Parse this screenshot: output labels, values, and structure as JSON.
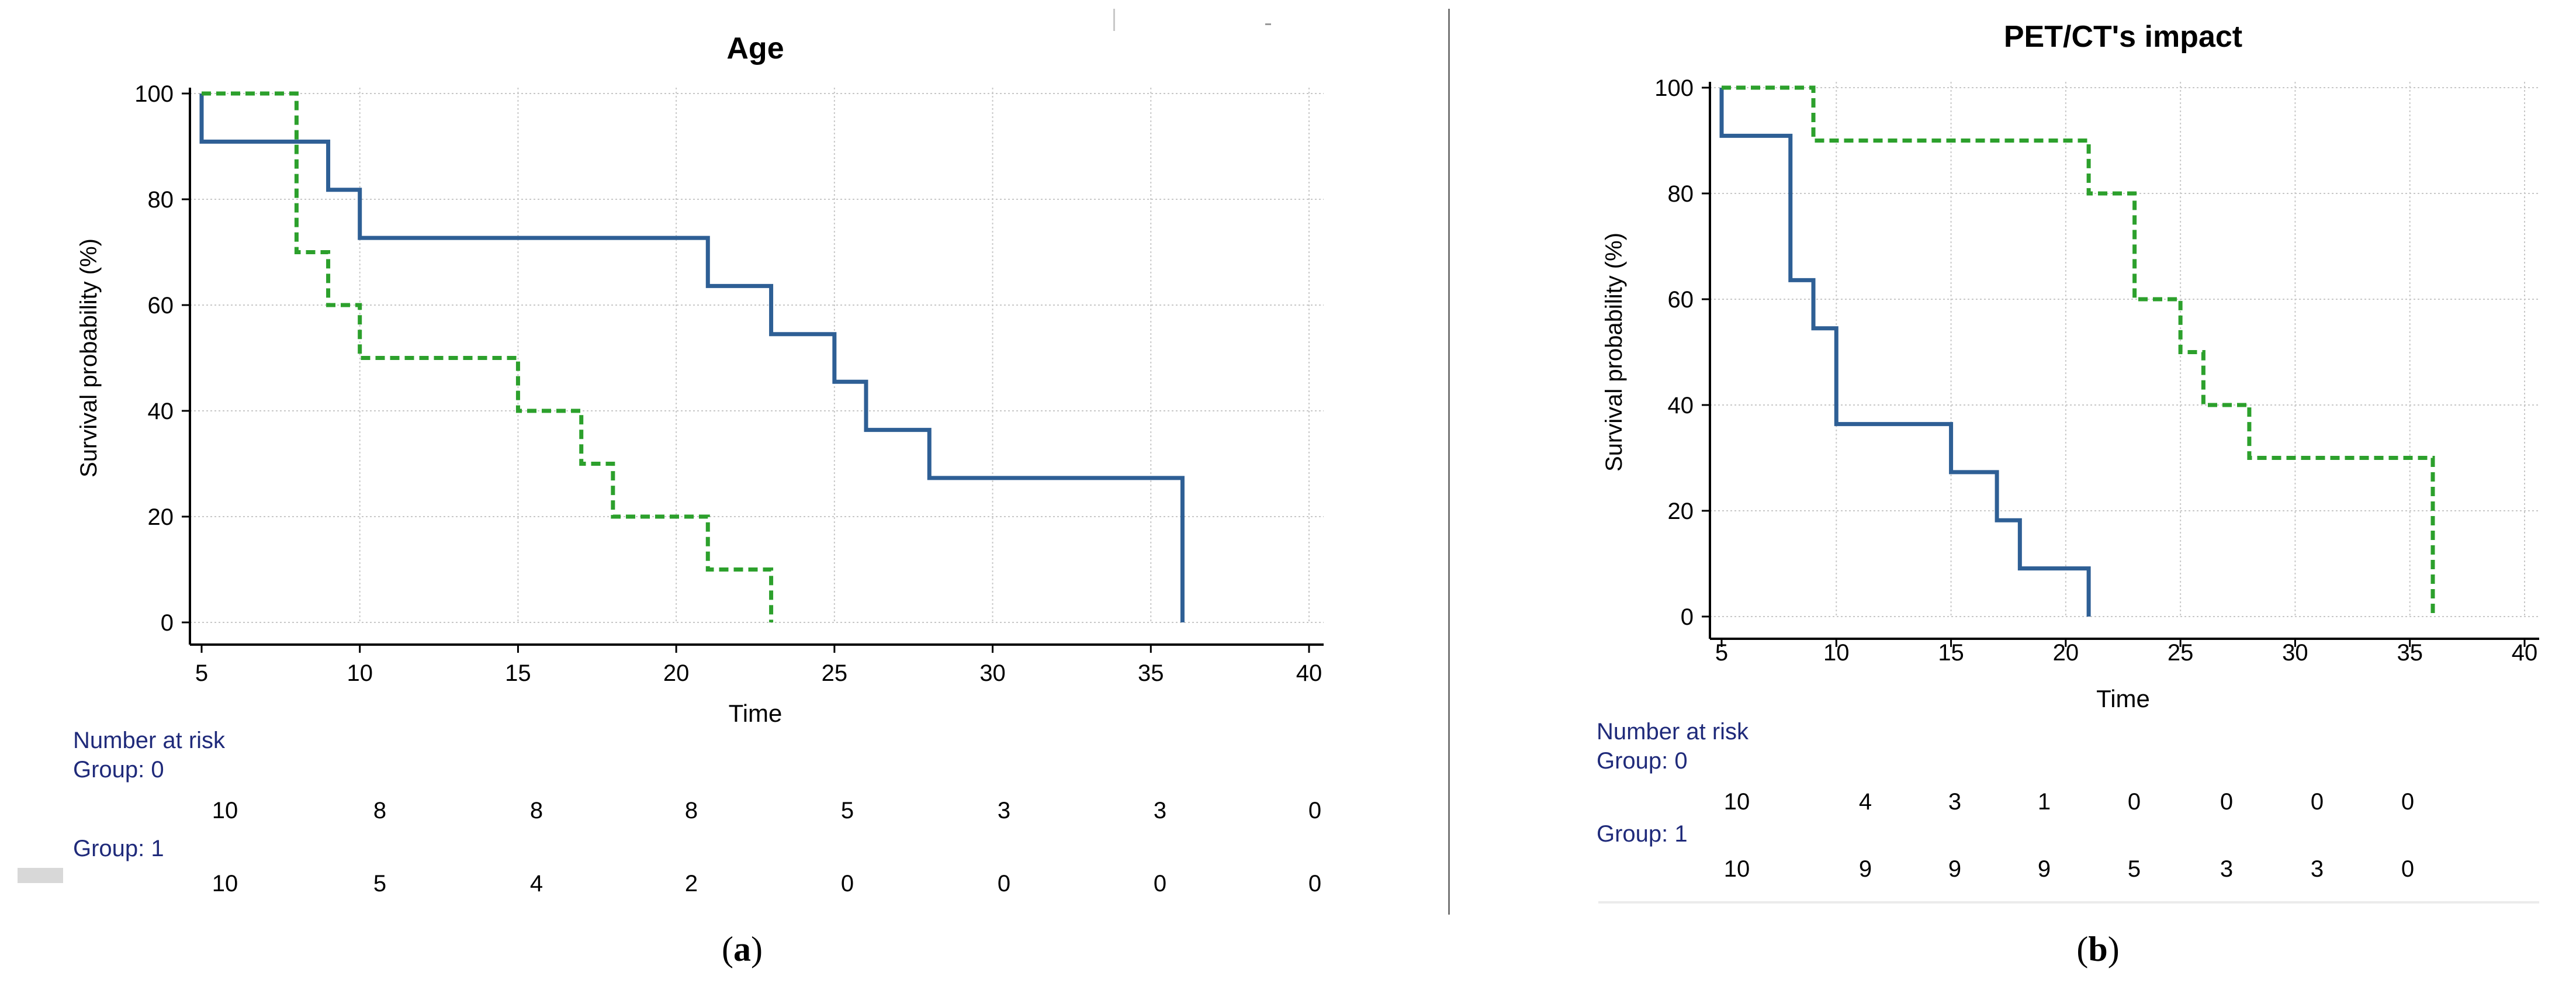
{
  "chart_data": [
    {
      "type": "kaplan-meier",
      "panel": "a",
      "title": "Age",
      "xlabel": "Time",
      "ylabel": "Survival probability (%)",
      "xlim": [
        5,
        40
      ],
      "ylim": [
        0,
        100
      ],
      "x_ticks": [
        5,
        10,
        15,
        20,
        25,
        30,
        35,
        40
      ],
      "y_ticks": [
        0,
        20,
        40,
        60,
        80,
        100
      ],
      "grid": true,
      "series": [
        {
          "name": "Group: 0",
          "color": "#2e5f95",
          "style": "solid",
          "steps": [
            [
              5,
              100
            ],
            [
              5,
              90.9
            ],
            [
              9,
              81.8
            ],
            [
              10,
              72.7
            ],
            [
              21,
              63.6
            ],
            [
              23,
              54.5
            ],
            [
              25,
              45.5
            ],
            [
              26,
              36.4
            ],
            [
              28,
              27.3
            ],
            [
              36,
              0
            ]
          ],
          "end_x": 36
        },
        {
          "name": "Group: 1",
          "color": "#2ca02c",
          "style": "dashed",
          "steps": [
            [
              5,
              100
            ],
            [
              8,
              70
            ],
            [
              9,
              60
            ],
            [
              10,
              50
            ],
            [
              15,
              40
            ],
            [
              17,
              30
            ],
            [
              18,
              20
            ],
            [
              21,
              10
            ],
            [
              23,
              0
            ]
          ],
          "end_x": 23
        }
      ],
      "risk_table": {
        "title": "Number at risk",
        "groups": [
          {
            "label": "Group: 0",
            "values": [
              "10",
              "8",
              "8",
              "8",
              "5",
              "3",
              "3",
              "0"
            ]
          },
          {
            "label": "Group: 1",
            "values": [
              "10",
              "5",
              "4",
              "2",
              "0",
              "0",
              "0",
              "0"
            ]
          }
        ]
      },
      "caption_open": "(",
      "caption_letter": "a",
      "caption_close": ")"
    },
    {
      "type": "kaplan-meier",
      "panel": "b",
      "title": "PET/CT's impact",
      "xlabel": "Time",
      "ylabel": "Survival probability (%)",
      "xlim": [
        5,
        40
      ],
      "ylim": [
        0,
        100
      ],
      "x_ticks": [
        5,
        10,
        15,
        20,
        25,
        30,
        35,
        40
      ],
      "y_ticks": [
        0,
        20,
        40,
        60,
        80,
        100
      ],
      "grid": true,
      "series": [
        {
          "name": "Group: 0",
          "color": "#2e5f95",
          "style": "solid",
          "steps": [
            [
              5,
              100
            ],
            [
              5,
              90.9
            ],
            [
              8,
              63.6
            ],
            [
              9,
              54.5
            ],
            [
              10,
              36.4
            ],
            [
              15,
              27.3
            ],
            [
              17,
              18.2
            ],
            [
              18,
              9.1
            ],
            [
              21,
              0
            ]
          ],
          "end_x": 21
        },
        {
          "name": "Group: 1",
          "color": "#2ca02c",
          "style": "dashed",
          "steps": [
            [
              5,
              100
            ],
            [
              9,
              90
            ],
            [
              21,
              80
            ],
            [
              23,
              60
            ],
            [
              25,
              50
            ],
            [
              26,
              40
            ],
            [
              28,
              30
            ],
            [
              36,
              0
            ]
          ],
          "end_x": 36
        }
      ],
      "risk_table": {
        "title": "Number at risk",
        "groups": [
          {
            "label": "Group: 0",
            "values": [
              "10",
              "4",
              "3",
              "1",
              "0",
              "0",
              "0",
              "0"
            ]
          },
          {
            "label": "Group: 1",
            "values": [
              "10",
              "9",
              "9",
              "9",
              "5",
              "3",
              "3",
              "0"
            ]
          }
        ]
      },
      "caption_open": "(",
      "caption_letter": "b",
      "caption_close": ")"
    }
  ]
}
